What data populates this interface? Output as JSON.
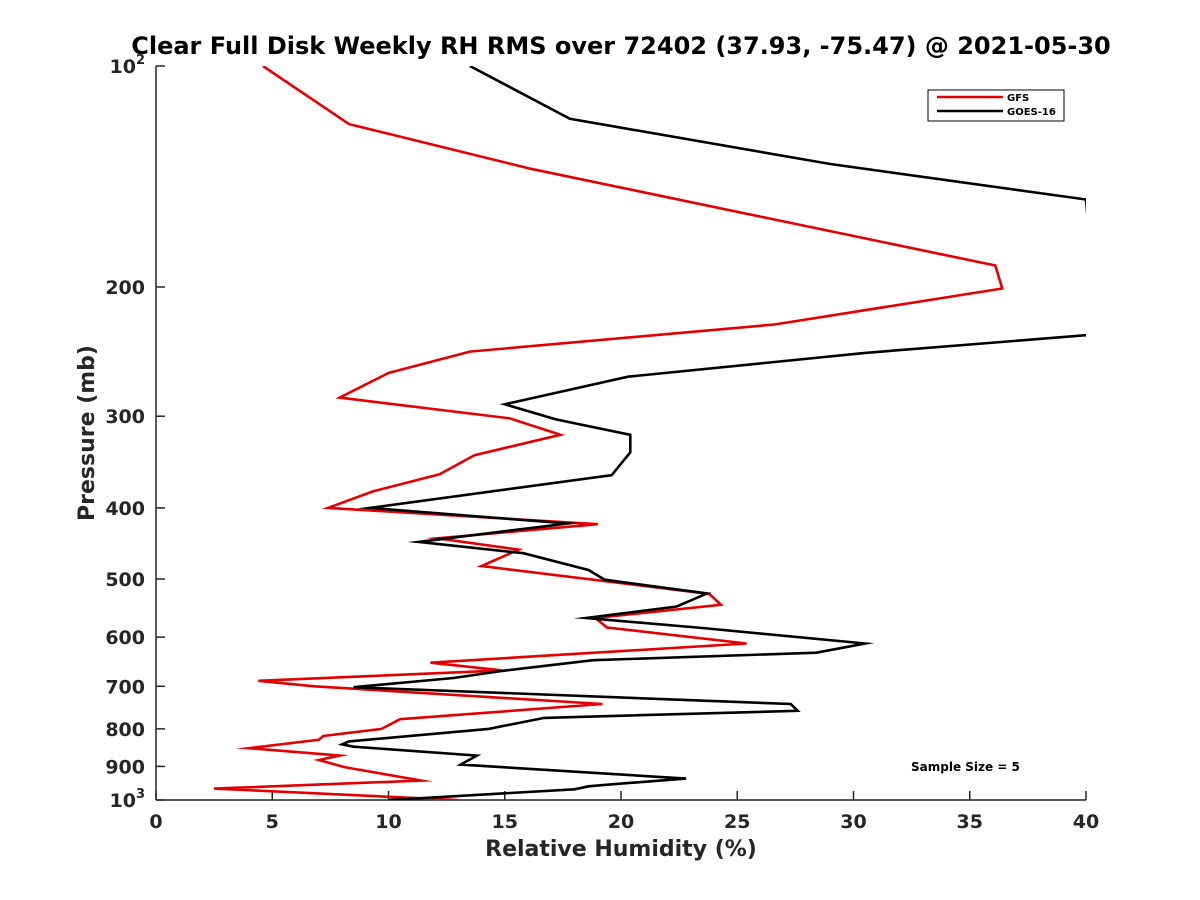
{
  "chart_data": {
    "type": "line",
    "title": "Clear Full Disk Weekly RH RMS over 72402 (37.93, -75.47) @ 2021-05-30",
    "xlabel": "Relative Humidity (%)",
    "ylabel": "Pressure (mb)",
    "xlim": [
      0,
      40
    ],
    "ylim": [
      100,
      1000
    ],
    "yscale": "log",
    "y_reversed": true,
    "xticks": [
      {
        "value": 0,
        "label": "0"
      },
      {
        "value": 5,
        "label": "5"
      },
      {
        "value": 10,
        "label": "10"
      },
      {
        "value": 15,
        "label": "15"
      },
      {
        "value": 20,
        "label": "20"
      },
      {
        "value": 25,
        "label": "25"
      },
      {
        "value": 30,
        "label": "30"
      },
      {
        "value": 35,
        "label": "35"
      },
      {
        "value": 40,
        "label": "40"
      }
    ],
    "yticks": [
      {
        "value": 100,
        "label": "10",
        "exp": "2"
      },
      {
        "value": 200,
        "label": "200"
      },
      {
        "value": 300,
        "label": "300"
      },
      {
        "value": 400,
        "label": "400"
      },
      {
        "value": 500,
        "label": "500"
      },
      {
        "value": 600,
        "label": "600"
      },
      {
        "value": 700,
        "label": "700"
      },
      {
        "value": 800,
        "label": "800"
      },
      {
        "value": 900,
        "label": "900"
      },
      {
        "value": 1000,
        "label": "10",
        "exp": "3"
      }
    ],
    "series": [
      {
        "name": "GFS",
        "color": "#e30000",
        "points": [
          [
            4.6,
            100
          ],
          [
            8.3,
            120
          ],
          [
            16.1,
            138
          ],
          [
            36.1,
            187
          ],
          [
            36.4,
            201
          ],
          [
            26.6,
            225
          ],
          [
            13.5,
            245
          ],
          [
            10.0,
            262
          ],
          [
            7.9,
            283
          ],
          [
            15.2,
            302
          ],
          [
            17.4,
            318
          ],
          [
            13.7,
            339
          ],
          [
            12.2,
            360
          ],
          [
            9.3,
            380
          ],
          [
            7.4,
            400
          ],
          [
            19.0,
            421
          ],
          [
            12.1,
            440
          ],
          [
            15.6,
            456
          ],
          [
            14.0,
            480
          ],
          [
            23.8,
            524
          ],
          [
            24.3,
            542
          ],
          [
            18.9,
            565
          ],
          [
            19.4,
            582
          ],
          [
            25.4,
            612
          ],
          [
            11.8,
            650
          ],
          [
            14.9,
            666
          ],
          [
            4.4,
            688
          ],
          [
            6.8,
            700
          ],
          [
            19.2,
            740
          ],
          [
            10.5,
            776
          ],
          [
            9.7,
            800
          ],
          [
            7.2,
            818
          ],
          [
            7.0,
            828
          ],
          [
            4.0,
            850
          ],
          [
            7.9,
            870
          ],
          [
            7.0,
            882
          ],
          [
            8.1,
            902
          ],
          [
            11.4,
            941
          ],
          [
            2.5,
            965
          ],
          [
            13.0,
            1000
          ]
        ]
      },
      {
        "name": "GOES-16",
        "color": "#000000",
        "points": [
          [
            13.5,
            100
          ],
          [
            17.8,
            118
          ],
          [
            29.0,
            136
          ],
          [
            40.0,
            152
          ],
          [
            40.5,
            232
          ],
          [
            30.5,
            246
          ],
          [
            20.3,
            265
          ],
          [
            15.0,
            289
          ],
          [
            17.2,
            303
          ],
          [
            20.4,
            318
          ],
          [
            20.4,
            336
          ],
          [
            19.6,
            361
          ],
          [
            9.2,
            400
          ],
          [
            17.7,
            420
          ],
          [
            11.3,
            445
          ],
          [
            15.8,
            461
          ],
          [
            18.6,
            486
          ],
          [
            19.3,
            501
          ],
          [
            23.7,
            523
          ],
          [
            22.4,
            545
          ],
          [
            18.5,
            565
          ],
          [
            23.5,
            583
          ],
          [
            30.5,
            612
          ],
          [
            28.4,
            630
          ],
          [
            18.8,
            645
          ],
          [
            14.9,
            667
          ],
          [
            12.8,
            682
          ],
          [
            8.5,
            702
          ],
          [
            27.3,
            740
          ],
          [
            27.6,
            756
          ],
          [
            16.7,
            773
          ],
          [
            14.3,
            800
          ],
          [
            8.3,
            832
          ],
          [
            8.0,
            840
          ],
          [
            8.5,
            846
          ],
          [
            13.8,
            870
          ],
          [
            13.1,
            895
          ],
          [
            22.8,
            935
          ],
          [
            19.6,
            952
          ],
          [
            18.6,
            958
          ],
          [
            18.0,
            967
          ],
          [
            10.0,
            1000
          ]
        ]
      }
    ],
    "legend": {
      "location": "top-right",
      "entries": [
        "GFS",
        "GOES-16"
      ]
    },
    "annotations": [
      "Sample Size = 5"
    ],
    "grid": false
  }
}
